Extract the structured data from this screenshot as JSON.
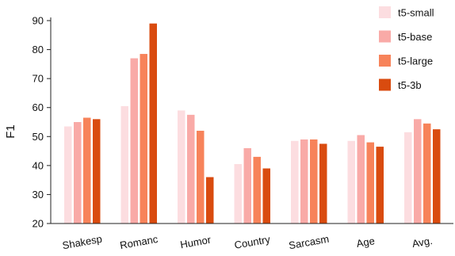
{
  "chart_data": {
    "type": "bar",
    "title": "",
    "xlabel": "",
    "ylabel": "F1",
    "ylim": [
      20,
      90
    ],
    "yticks": [
      20,
      30,
      40,
      50,
      60,
      70,
      80,
      90
    ],
    "grid": false,
    "legend_position": "top-right",
    "categories": [
      "Shakesp",
      "Romanc",
      "Humor",
      "Country",
      "Sarcasm",
      "Age",
      "Avg."
    ],
    "series": [
      {
        "name": "t5-small",
        "color": "#fcdde0",
        "values": [
          53.5,
          60.5,
          59,
          40.5,
          48.5,
          48.5,
          51.5
        ]
      },
      {
        "name": "t5-base",
        "color": "#f9aaa7",
        "values": [
          55,
          77,
          57.5,
          46,
          49,
          50.5,
          56
        ]
      },
      {
        "name": "t5-large",
        "color": "#f7835a",
        "values": [
          56.5,
          78.5,
          52,
          43,
          49,
          48,
          54.5
        ]
      },
      {
        "name": "t5-3b",
        "color": "#d94b0f",
        "values": [
          56,
          89,
          36,
          39,
          47.5,
          46.5,
          52.5
        ]
      }
    ]
  }
}
